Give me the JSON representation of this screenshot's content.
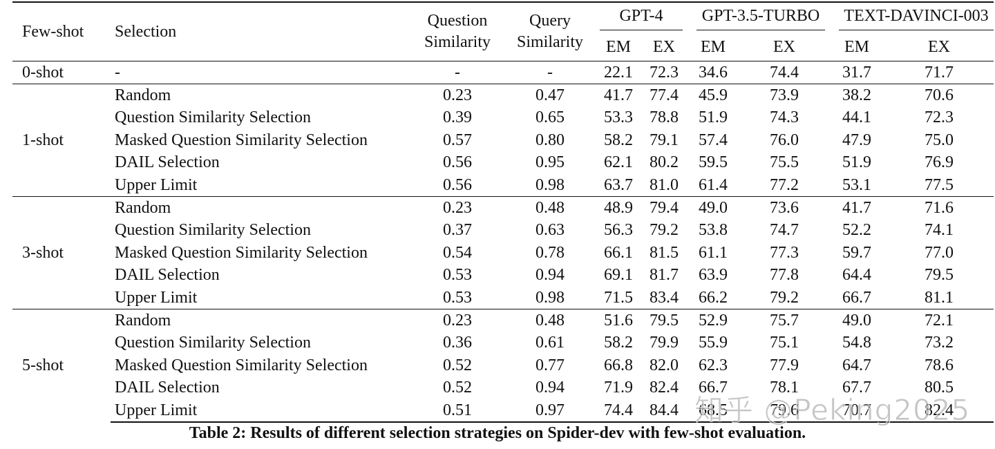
{
  "table": {
    "headers": {
      "few_shot": "Few-shot",
      "selection": "Selection",
      "question_similarity": [
        "Question",
        "Similarity"
      ],
      "query_similarity": [
        "Query",
        "Similarity"
      ],
      "models": [
        "GPT-4",
        "GPT-3.5-TURBO",
        "TEXT-DAVINCI-003"
      ],
      "metrics": [
        "EM",
        "EX",
        "EM",
        "EX",
        "EM",
        "EX"
      ]
    },
    "groups": [
      {
        "label": "0-shot",
        "rows": [
          [
            "-",
            "-",
            "-",
            "22.1",
            "72.3",
            "34.6",
            "74.4",
            "31.7",
            "71.7"
          ]
        ]
      },
      {
        "label": "1-shot",
        "rows": [
          [
            "Random",
            "0.23",
            "0.47",
            "41.7",
            "77.4",
            "45.9",
            "73.9",
            "38.2",
            "70.6"
          ],
          [
            "Question Similarity Selection",
            "0.39",
            "0.65",
            "53.3",
            "78.8",
            "51.9",
            "74.3",
            "44.1",
            "72.3"
          ],
          [
            "Masked Question Similarity Selection",
            "0.57",
            "0.80",
            "58.2",
            "79.1",
            "57.4",
            "76.0",
            "47.9",
            "75.0"
          ],
          [
            "DAIL Selection",
            "0.56",
            "0.95",
            "62.1",
            "80.2",
            "59.5",
            "75.5",
            "51.9",
            "76.9"
          ],
          [
            "Upper Limit",
            "0.56",
            "0.98",
            "63.7",
            "81.0",
            "61.4",
            "77.2",
            "53.1",
            "77.5"
          ]
        ]
      },
      {
        "label": "3-shot",
        "rows": [
          [
            "Random",
            "0.23",
            "0.48",
            "48.9",
            "79.4",
            "49.0",
            "73.6",
            "41.7",
            "71.6"
          ],
          [
            "Question Similarity Selection",
            "0.37",
            "0.63",
            "56.3",
            "79.2",
            "53.8",
            "74.7",
            "52.2",
            "74.1"
          ],
          [
            "Masked Question Similarity Selection",
            "0.54",
            "0.78",
            "66.1",
            "81.5",
            "61.1",
            "77.3",
            "59.7",
            "77.0"
          ],
          [
            "DAIL Selection",
            "0.53",
            "0.94",
            "69.1",
            "81.7",
            "63.9",
            "77.8",
            "64.4",
            "79.5"
          ],
          [
            "Upper Limit",
            "0.53",
            "0.98",
            "71.5",
            "83.4",
            "66.2",
            "79.2",
            "66.7",
            "81.1"
          ]
        ]
      },
      {
        "label": "5-shot",
        "rows": [
          [
            "Random",
            "0.23",
            "0.48",
            "51.6",
            "79.5",
            "52.9",
            "75.7",
            "49.0",
            "72.1"
          ],
          [
            "Question Similarity Selection",
            "0.36",
            "0.61",
            "58.2",
            "79.9",
            "55.9",
            "75.1",
            "54.8",
            "73.2"
          ],
          [
            "Masked Question Similarity Selection",
            "0.52",
            "0.77",
            "66.8",
            "82.0",
            "62.3",
            "77.9",
            "64.7",
            "78.6"
          ],
          [
            "DAIL Selection",
            "0.52",
            "0.94",
            "71.9",
            "82.4",
            "66.7",
            "78.1",
            "67.7",
            "80.5"
          ],
          [
            "Upper Limit",
            "0.51",
            "0.97",
            "74.4",
            "84.4",
            "68.5",
            "79.6",
            "70.7",
            "82.4"
          ]
        ]
      }
    ]
  },
  "caption": "Table 2: Results of different selection strategies on Spider-dev with few-shot evaluation.",
  "watermark": "知乎 @Peking2025"
}
